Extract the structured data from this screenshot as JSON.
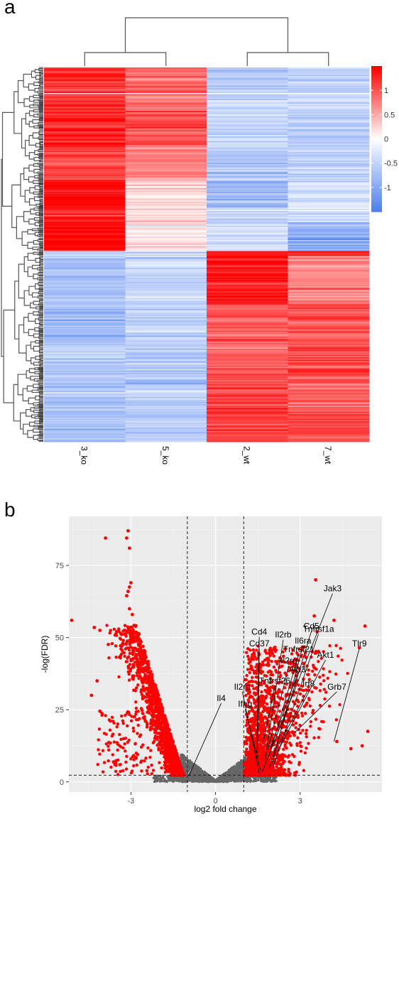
{
  "panels": {
    "a": "a",
    "b": "b"
  },
  "chart_data": [
    {
      "type": "heatmap",
      "panel": "a",
      "columns": [
        "3_ko",
        "5_ko",
        "2_wt",
        "7_wt"
      ],
      "column_dendrogram": "{{3_ko,5_ko},{2_wt,7_wt}}",
      "colorbar": {
        "ticks": [
          "1",
          "0.5",
          "0",
          "-0.5",
          "-1"
        ],
        "low": "#4f7ff0",
        "mid": "#ffffff",
        "high": "#ff0000"
      },
      "row_blocks": [
        {
          "rows": 24,
          "values": [
            1.25,
            0.9,
            -0.6,
            -0.55
          ]
        },
        {
          "rows": 12,
          "values": [
            1.2,
            0.85,
            -0.45,
            -0.5
          ]
        },
        {
          "rows": 30,
          "values": [
            1.3,
            1.0,
            -0.5,
            -0.6
          ]
        },
        {
          "rows": 28,
          "values": [
            1.1,
            0.75,
            -0.65,
            -0.5
          ]
        },
        {
          "rows": 22,
          "values": [
            1.45,
            0.2,
            -0.85,
            -0.35
          ]
        },
        {
          "rows": 12,
          "values": [
            1.35,
            0.3,
            -0.5,
            -0.35
          ]
        },
        {
          "rows": 24,
          "values": [
            1.5,
            0.15,
            -0.35,
            -0.95
          ]
        },
        {
          "rows": 4,
          "values": [
            -0.6,
            -0.55,
            1.3,
            1.4
          ]
        },
        {
          "rows": 40,
          "values": [
            -0.75,
            -0.5,
            1.4,
            0.7
          ]
        },
        {
          "rows": 30,
          "values": [
            -0.8,
            -0.55,
            0.95,
            0.95
          ]
        },
        {
          "rows": 30,
          "values": [
            -0.6,
            -0.6,
            1.0,
            1.1
          ]
        },
        {
          "rows": 30,
          "values": [
            -0.7,
            -0.55,
            1.05,
            0.9
          ]
        },
        {
          "rows": 24,
          "values": [
            -0.75,
            -0.6,
            1.15,
            1.0
          ]
        }
      ]
    },
    {
      "type": "scatter",
      "panel": "b",
      "xlabel": "log2 fold change",
      "ylabel": "-log(FDR)",
      "xticks": [
        -3,
        0,
        3
      ],
      "yticks": [
        0,
        25,
        50,
        75
      ],
      "xlim": [
        -5.2,
        5.9
      ],
      "ylim": [
        -3.5,
        92
      ],
      "thresholds": {
        "x": [
          -1,
          1
        ],
        "y": 2.3
      },
      "colors": {
        "significant": "#ff0000",
        "not_significant": "#666666",
        "panel_bg": "#ebebeb"
      },
      "labeled_genes": [
        {
          "gene": "Jak3",
          "x": 4.15,
          "y": 66.0
        },
        {
          "gene": "Cd5",
          "x": 3.4,
          "y": 53.0
        },
        {
          "gene": "Tnfrsf1a",
          "x": 3.65,
          "y": 52.0
        },
        {
          "gene": "Cd4",
          "x": 1.55,
          "y": 51.0
        },
        {
          "gene": "Il2rb",
          "x": 2.4,
          "y": 50.0
        },
        {
          "gene": "Il6ra",
          "x": 3.1,
          "y": 48.0
        },
        {
          "gene": "Cd37",
          "x": 1.55,
          "y": 47.0
        },
        {
          "gene": "Tnfrsf21",
          "x": 2.95,
          "y": 45.0
        },
        {
          "gene": "Akt1",
          "x": 3.9,
          "y": 43.0
        },
        {
          "gene": "Tlr9",
          "x": 5.1,
          "y": 47.0
        },
        {
          "gene": "Il2rg",
          "x": 2.6,
          "y": 41.0
        },
        {
          "gene": "Akt3",
          "x": 2.9,
          "y": 38.0
        },
        {
          "gene": "Tnfrsf26",
          "x": 2.1,
          "y": 34.0
        },
        {
          "gene": "Il2ra",
          "x": 0.95,
          "y": 32.0
        },
        {
          "gene": "Irf8",
          "x": 3.3,
          "y": 33.0
        },
        {
          "gene": "Grb7",
          "x": 4.3,
          "y": 32.0
        },
        {
          "gene": "Il4",
          "x": 0.2,
          "y": 28.0
        },
        {
          "gene": "Ifng",
          "x": 1.05,
          "y": 26.0
        }
      ],
      "highlight_points": [
        {
          "x": -3.1,
          "y": 87.0
        },
        {
          "x": -3.9,
          "y": 84.5
        },
        {
          "x": -3.15,
          "y": 84.5
        },
        {
          "x": -3.05,
          "y": 81.0
        },
        {
          "x": -3.0,
          "y": 69.0
        },
        {
          "x": -3.05,
          "y": 67.5
        },
        {
          "x": -3.1,
          "y": 66.0
        },
        {
          "x": -3.15,
          "y": 64.5
        },
        {
          "x": -3.05,
          "y": 60.0
        },
        {
          "x": -2.95,
          "y": 58.0
        },
        {
          "x": -5.1,
          "y": 56.0
        },
        {
          "x": -4.3,
          "y": 53.5
        },
        {
          "x": -4.1,
          "y": 52.5
        },
        {
          "x": -4.2,
          "y": 35.0
        },
        {
          "x": -4.1,
          "y": 24.5
        },
        {
          "x": -4.4,
          "y": 30.0
        },
        {
          "x": 3.55,
          "y": 70.0
        },
        {
          "x": 3.5,
          "y": 57.5
        },
        {
          "x": 5.3,
          "y": 54.0
        },
        {
          "x": 3.6,
          "y": 52.0
        },
        {
          "x": 5.1,
          "y": 46.5
        },
        {
          "x": 4.2,
          "y": 56.0
        },
        {
          "x": 5.4,
          "y": 17.5
        },
        {
          "x": 4.3,
          "y": 14.0
        },
        {
          "x": 5.2,
          "y": 12.5
        },
        {
          "x": 4.8,
          "y": 11.5
        }
      ]
    }
  ]
}
